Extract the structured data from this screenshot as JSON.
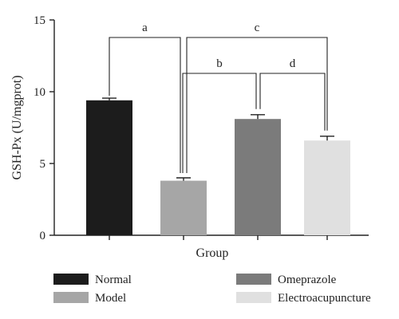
{
  "chart_data": {
    "type": "bar",
    "categories": [
      "Normal",
      "Model",
      "Omeprazole",
      "Electroacupuncture"
    ],
    "values": [
      9.4,
      3.8,
      8.1,
      6.6
    ],
    "errors": [
      0.15,
      0.2,
      0.3,
      0.3
    ],
    "colors": [
      "#1c1c1c",
      "#a6a6a6",
      "#7b7b7b",
      "#e0e0e0"
    ],
    "xlabel": "Group",
    "ylabel": "GSH-Px (U/mgprot)",
    "ylim": [
      0,
      15
    ],
    "yticks": [
      0,
      5,
      10,
      15
    ],
    "grid": false,
    "legend_position": "bottom",
    "significance": [
      {
        "label": "a",
        "from": "Normal",
        "to": "Model"
      },
      {
        "label": "c",
        "from": "Model",
        "to": "Electroacupuncture"
      },
      {
        "label": "b",
        "from": "Model",
        "to": "Omeprazole"
      },
      {
        "label": "d",
        "from": "Omeprazole",
        "to": "Electroacupuncture"
      }
    ]
  },
  "legend": [
    {
      "label": "Normal",
      "color": "#1c1c1c"
    },
    {
      "label": "Omeprazole",
      "color": "#7b7b7b"
    },
    {
      "label": "Model",
      "color": "#a6a6a6"
    },
    {
      "label": "Electroacupuncture",
      "color": "#e0e0e0"
    }
  ]
}
